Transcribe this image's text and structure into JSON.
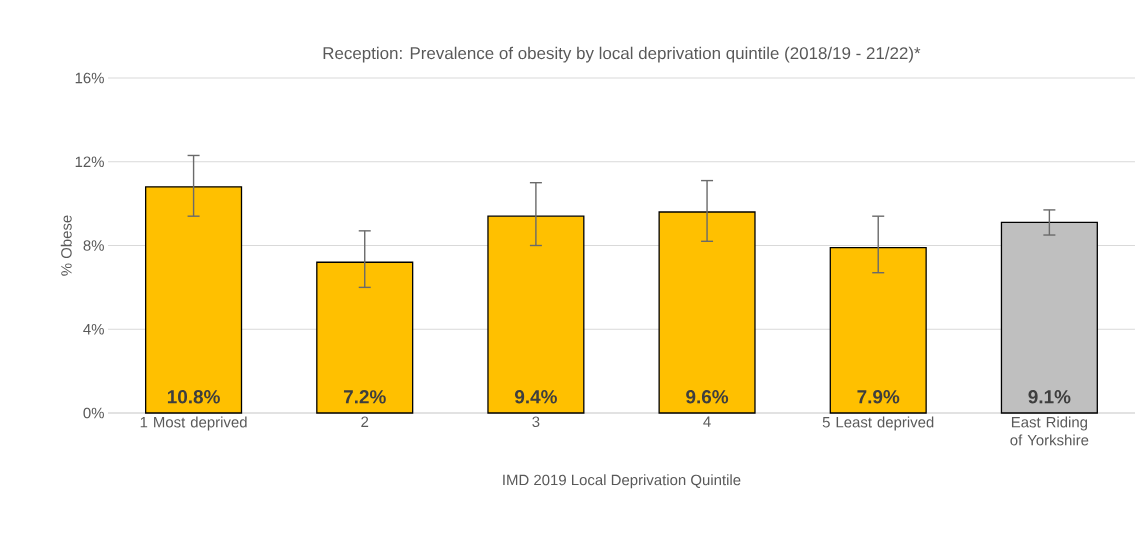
{
  "chart_data": {
    "type": "bar",
    "title": "Reception: Prevalence of obesity by local deprivation quintile (2018/19 - 21/22)*",
    "xlabel": "IMD 2019 Local Deprivation Quintile",
    "ylabel": "% Obese",
    "categories": [
      "1 Most deprived",
      "2",
      "3",
      "4",
      "5 Least deprived",
      "East Riding of Yorkshire"
    ],
    "values": [
      10.8,
      7.2,
      9.4,
      9.6,
      7.9,
      9.1
    ],
    "colors": [
      "#ffc000",
      "#ffc000",
      "#ffc000",
      "#ffc000",
      "#ffc000",
      "#bfbfbf"
    ],
    "errors": [
      [
        9.4,
        12.3
      ],
      [
        6.0,
        8.7
      ],
      [
        8.0,
        11.0
      ],
      [
        8.2,
        11.1
      ],
      [
        6.7,
        9.4
      ],
      [
        8.5,
        9.7
      ]
    ],
    "value_labels": [
      "10.8%",
      "7.2%",
      "9.4%",
      "9.6%",
      "7.9%",
      "9.1%"
    ],
    "ylim": [
      0,
      16
    ],
    "yticks": [
      {
        "value": 0,
        "label": "0%"
      },
      {
        "value": 4,
        "label": "4%"
      },
      {
        "value": 8,
        "label": "8%"
      },
      {
        "value": 12,
        "label": "12%"
      },
      {
        "value": 16,
        "label": "16%"
      }
    ],
    "grid": "y"
  }
}
